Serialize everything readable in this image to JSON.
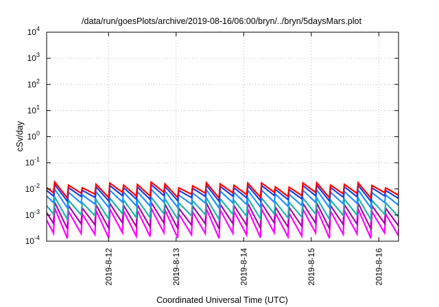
{
  "chart_data": {
    "type": "line",
    "title": "/data/run/goesPlots/archive/2019-08-16/06:00/bryn/../bryn/5daysMars.plot",
    "xlabel": "Coordinated Universal Time (UTC)",
    "ylabel": "cSv/day",
    "yscale": "log",
    "ylim": [
      0.0001,
      10000
    ],
    "xlim": [
      "2019-08-11 02:00",
      "2019-08-16 07:00"
    ],
    "grid": true,
    "x_ticks": [
      "2019-8-12",
      "2019-8-13",
      "2019-8-14",
      "2019-8-15",
      "2019-8-16"
    ],
    "y_ticks": [
      {
        "base": "10",
        "exp": "-4"
      },
      {
        "base": "10",
        "exp": "-3"
      },
      {
        "base": "10",
        "exp": "-2"
      },
      {
        "base": "10",
        "exp": "-1"
      },
      {
        "base": "10",
        "exp": "0"
      },
      {
        "base": "10",
        "exp": "1"
      },
      {
        "base": "10",
        "exp": "2"
      },
      {
        "base": "10",
        "exp": "3"
      },
      {
        "base": "10",
        "exp": "4"
      }
    ],
    "series": [
      {
        "color": "#ff0000",
        "peak_csv_day": 0.015,
        "trough_csv_day": 0.006
      },
      {
        "color": "#1f3fd8",
        "peak_csv_day": 0.012,
        "trough_csv_day": 0.0045
      },
      {
        "color": "#1e90ff",
        "peak_csv_day": 0.008,
        "trough_csv_day": 0.0025
      },
      {
        "color": "#20b2aa",
        "peak_csv_day": 0.004,
        "trough_csv_day": 0.0009
      },
      {
        "color": "#b000b0",
        "peak_csv_day": 0.0025,
        "trough_csv_day": 0.0004
      },
      {
        "color": "#ff00ff",
        "peak_csv_day": 0.0015,
        "trough_csv_day": 0.00017
      }
    ],
    "sawtooth_period_hours": 4.9
  }
}
